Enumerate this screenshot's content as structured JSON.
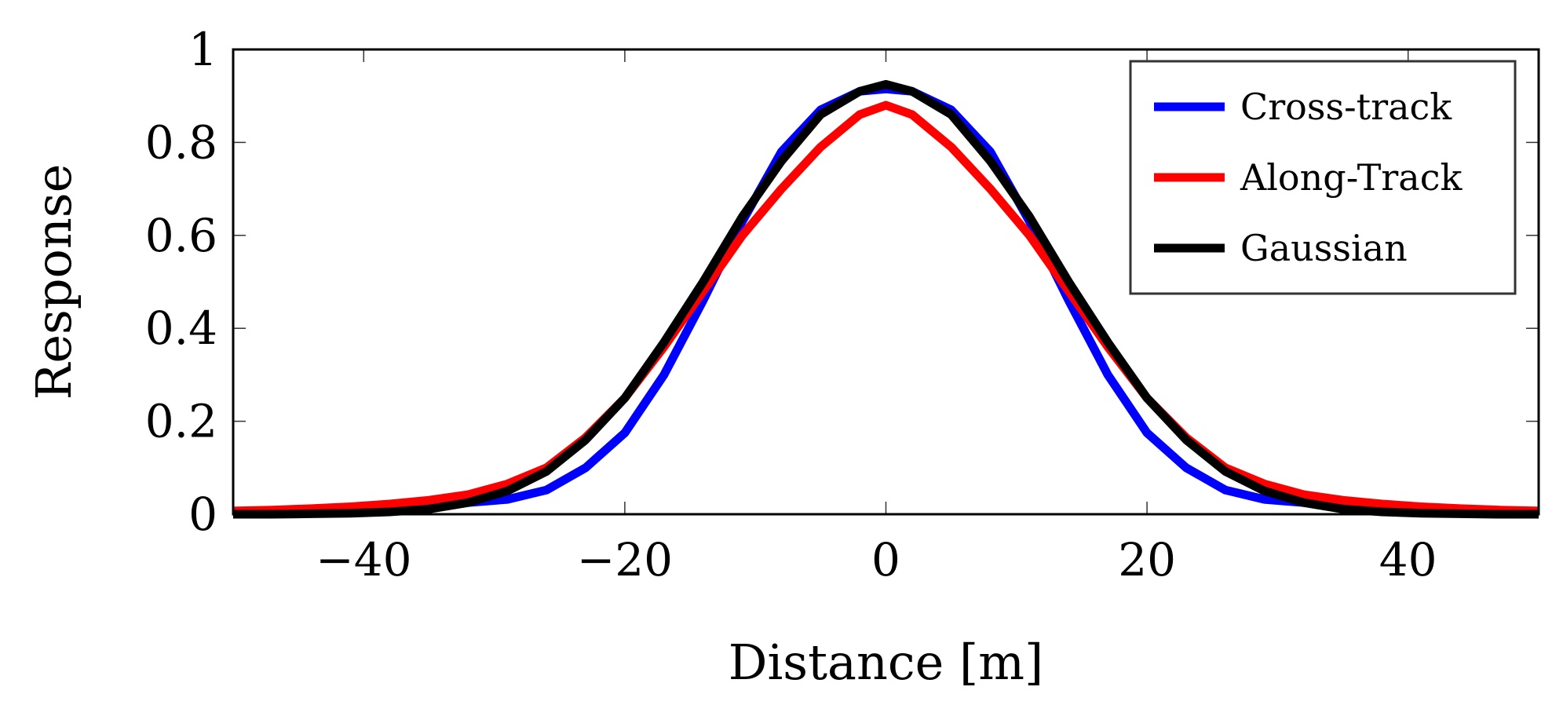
{
  "chart_data": {
    "type": "line",
    "title": "",
    "xlabel": "Distance [m]",
    "ylabel": "Response",
    "xlim": [
      -50,
      50
    ],
    "ylim": [
      0,
      1
    ],
    "xticks": [
      -40,
      -20,
      0,
      20,
      40
    ],
    "xtick_labels": [
      "−40",
      "−20",
      "0",
      "20",
      "40"
    ],
    "yticks": [
      0,
      0.2,
      0.4,
      0.6,
      0.8,
      1
    ],
    "ytick_labels": [
      "0",
      "0.2",
      "0.4",
      "0.6",
      "0.8",
      "1"
    ],
    "legend_position": "top-right",
    "x": [
      -50,
      -47,
      -44,
      -41,
      -38,
      -35,
      -32,
      -29,
      -26,
      -23,
      -20,
      -17,
      -14,
      -11,
      -8,
      -5,
      -2,
      0,
      2,
      5,
      8,
      11,
      14,
      17,
      20,
      23,
      26,
      29,
      32,
      35,
      38,
      41,
      44,
      47,
      50
    ],
    "series": [
      {
        "name": "Cross-track",
        "color": "#0000ff",
        "values": [
          0.005,
          0.006,
          0.008,
          0.01,
          0.013,
          0.017,
          0.025,
          0.032,
          0.052,
          0.1,
          0.175,
          0.3,
          0.46,
          0.63,
          0.78,
          0.87,
          0.91,
          0.915,
          0.91,
          0.87,
          0.78,
          0.63,
          0.46,
          0.3,
          0.175,
          0.1,
          0.052,
          0.032,
          0.025,
          0.017,
          0.013,
          0.01,
          0.008,
          0.006,
          0.005
        ]
      },
      {
        "name": "Along-Track",
        "color": "#ff0000",
        "values": [
          0.007,
          0.009,
          0.012,
          0.016,
          0.022,
          0.03,
          0.042,
          0.065,
          0.1,
          0.165,
          0.25,
          0.36,
          0.48,
          0.6,
          0.7,
          0.79,
          0.86,
          0.88,
          0.86,
          0.79,
          0.7,
          0.6,
          0.48,
          0.36,
          0.25,
          0.165,
          0.1,
          0.065,
          0.042,
          0.03,
          0.022,
          0.016,
          0.012,
          0.009,
          0.007
        ]
      },
      {
        "name": "Gaussian",
        "color": "#000000",
        "values": [
          0.0,
          0.0,
          0.001,
          0.002,
          0.005,
          0.011,
          0.025,
          0.05,
          0.092,
          0.16,
          0.25,
          0.37,
          0.5,
          0.64,
          0.76,
          0.86,
          0.91,
          0.925,
          0.91,
          0.86,
          0.76,
          0.64,
          0.5,
          0.37,
          0.25,
          0.16,
          0.092,
          0.05,
          0.025,
          0.011,
          0.005,
          0.002,
          0.001,
          0.0,
          0.0
        ]
      }
    ]
  }
}
